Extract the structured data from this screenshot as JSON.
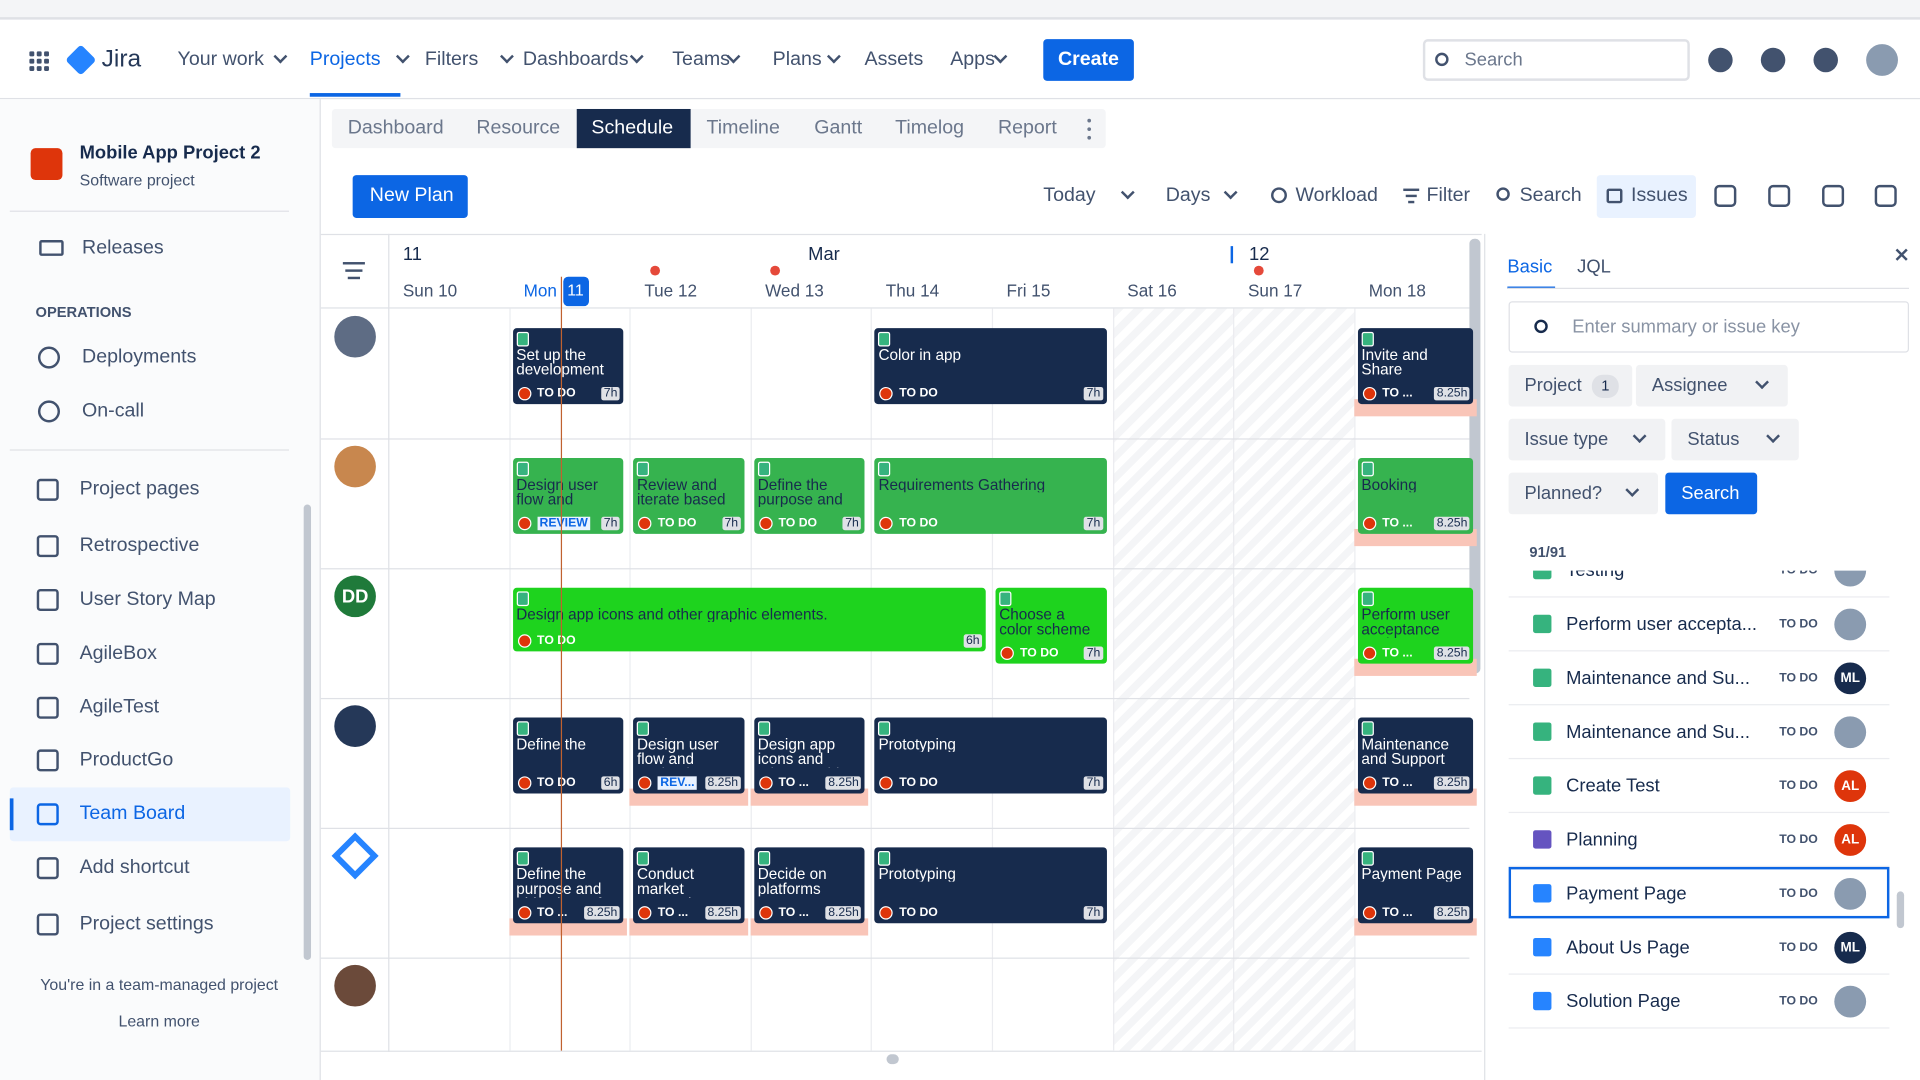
{
  "top_nav": {
    "logo": "Jira",
    "items": [
      "Your work",
      "Projects",
      "Filters",
      "Dashboards",
      "Teams",
      "Plans",
      "Assets",
      "Apps"
    ],
    "create": "Create",
    "search": "Search"
  },
  "sidebar": {
    "project_name": "Mobile App Project 2",
    "project_type": "Software project",
    "releases": "Releases",
    "section": "OPERATIONS",
    "ops_items": [
      "Deployments",
      "On-call"
    ],
    "items": [
      "Project pages",
      "Retrospective",
      "User Story Map",
      "AgileBox",
      "AgileTest",
      "ProductGo",
      "Team Board",
      "Add shortcut",
      "Project settings"
    ],
    "footer": "You're in a team-managed project",
    "learn_more": "Learn more"
  },
  "tabs": [
    "Dashboard",
    "Resource",
    "Schedule",
    "Timeline",
    "Gantt",
    "Timelog",
    "Report"
  ],
  "toolbar": {
    "new_plan": "New Plan",
    "today": "Today",
    "days": "Days",
    "workload": "Workload",
    "filter": "Filter",
    "search": "Search",
    "issues": "Issues"
  },
  "calendar": {
    "week_labels": [
      "11",
      "Mar",
      "12"
    ],
    "days": [
      "Sun 10",
      "Mon",
      "Tue 12",
      "Wed 13",
      "Thu 14",
      "Fri 15",
      "Sat 16",
      "Sun 17",
      "Mon 18"
    ],
    "today": "11"
  },
  "rows": [
    {
      "cards": [
        {
          "title": "Set up the development",
          "status": "TO DO",
          "hours": "7h"
        },
        {
          "title": "Color in app",
          "status": "TO DO",
          "hours": "7h"
        },
        {
          "title": "Invite and Share",
          "status": "TO ...",
          "hours": "8.25h"
        }
      ]
    },
    {
      "cards": [
        {
          "title": "Design user flow and",
          "status": "REVIEW",
          "hours": "7h"
        },
        {
          "title": "Review and iterate based",
          "status": "TO DO",
          "hours": "7h"
        },
        {
          "title": "Define the purpose and",
          "status": "TO DO",
          "hours": "7h"
        },
        {
          "title": "Requirements Gathering",
          "status": "TO DO",
          "hours": "7h"
        },
        {
          "title": "Booking",
          "status": "TO ...",
          "hours": "8.25h"
        }
      ]
    },
    {
      "avatar": "DD",
      "cards": [
        {
          "title": "Design app icons and other graphic elements.",
          "status": "TO DO",
          "hours": "6h"
        },
        {
          "title": "Choose a color scheme",
          "status": "TO DO",
          "hours": "7h"
        },
        {
          "title": "Perform user acceptance testing",
          "status": "TO ...",
          "hours": "8.25h"
        }
      ]
    },
    {
      "cards": [
        {
          "title": "Define the",
          "status": "TO DO",
          "hours": "6h"
        },
        {
          "title": "Design user flow and navigation.",
          "status": "REV...",
          "hours": "8.25h"
        },
        {
          "title": "Design app icons and other graphic",
          "status": "TO ...",
          "hours": "8.25h"
        },
        {
          "title": "Prototyping",
          "status": "TO DO",
          "hours": "7h"
        },
        {
          "title": "Maintenance and Support",
          "status": "TO ...",
          "hours": "8.25h"
        }
      ]
    },
    {
      "cards": [
        {
          "title": "Define the purpose and objectives of",
          "status": "TO ...",
          "hours": "8.25h"
        },
        {
          "title": "Conduct market research to",
          "status": "TO ...",
          "hours": "8.25h"
        },
        {
          "title": "Decide on platforms",
          "status": "TO ...",
          "hours": "8.25h"
        },
        {
          "title": "Prototyping",
          "status": "TO DO",
          "hours": "7h"
        },
        {
          "title": "Payment Page",
          "status": "TO ...",
          "hours": "8.25h"
        }
      ]
    },
    {
      "cards": []
    }
  ],
  "panel": {
    "tabs": [
      "Basic",
      "JQL"
    ],
    "search_placeholder": "Enter summary or issue key",
    "project": "Project",
    "project_count": 1,
    "assignee": "Assignee",
    "issue_type": "Issue type",
    "status": "Status",
    "planned": "Planned?",
    "search": "Search",
    "count": "91/91",
    "issues": [
      {
        "title": "Testing",
        "status": "TO DO"
      },
      {
        "title": "Perform user accepta...",
        "status": "TO DO"
      },
      {
        "title": "Maintenance and Su...",
        "status": "TO DO",
        "initials": "ML"
      },
      {
        "title": "Maintenance and Su...",
        "status": "TO DO"
      },
      {
        "title": "Create Test",
        "status": "TO DO",
        "initials": "AL"
      },
      {
        "title": "Planning",
        "status": "TO DO",
        "initials": "AL"
      },
      {
        "title": "Payment Page",
        "status": "TO DO"
      },
      {
        "title": "About Us Page",
        "status": "TO DO",
        "initials": "ML"
      },
      {
        "title": "Solution Page",
        "status": "TO DO"
      }
    ]
  }
}
